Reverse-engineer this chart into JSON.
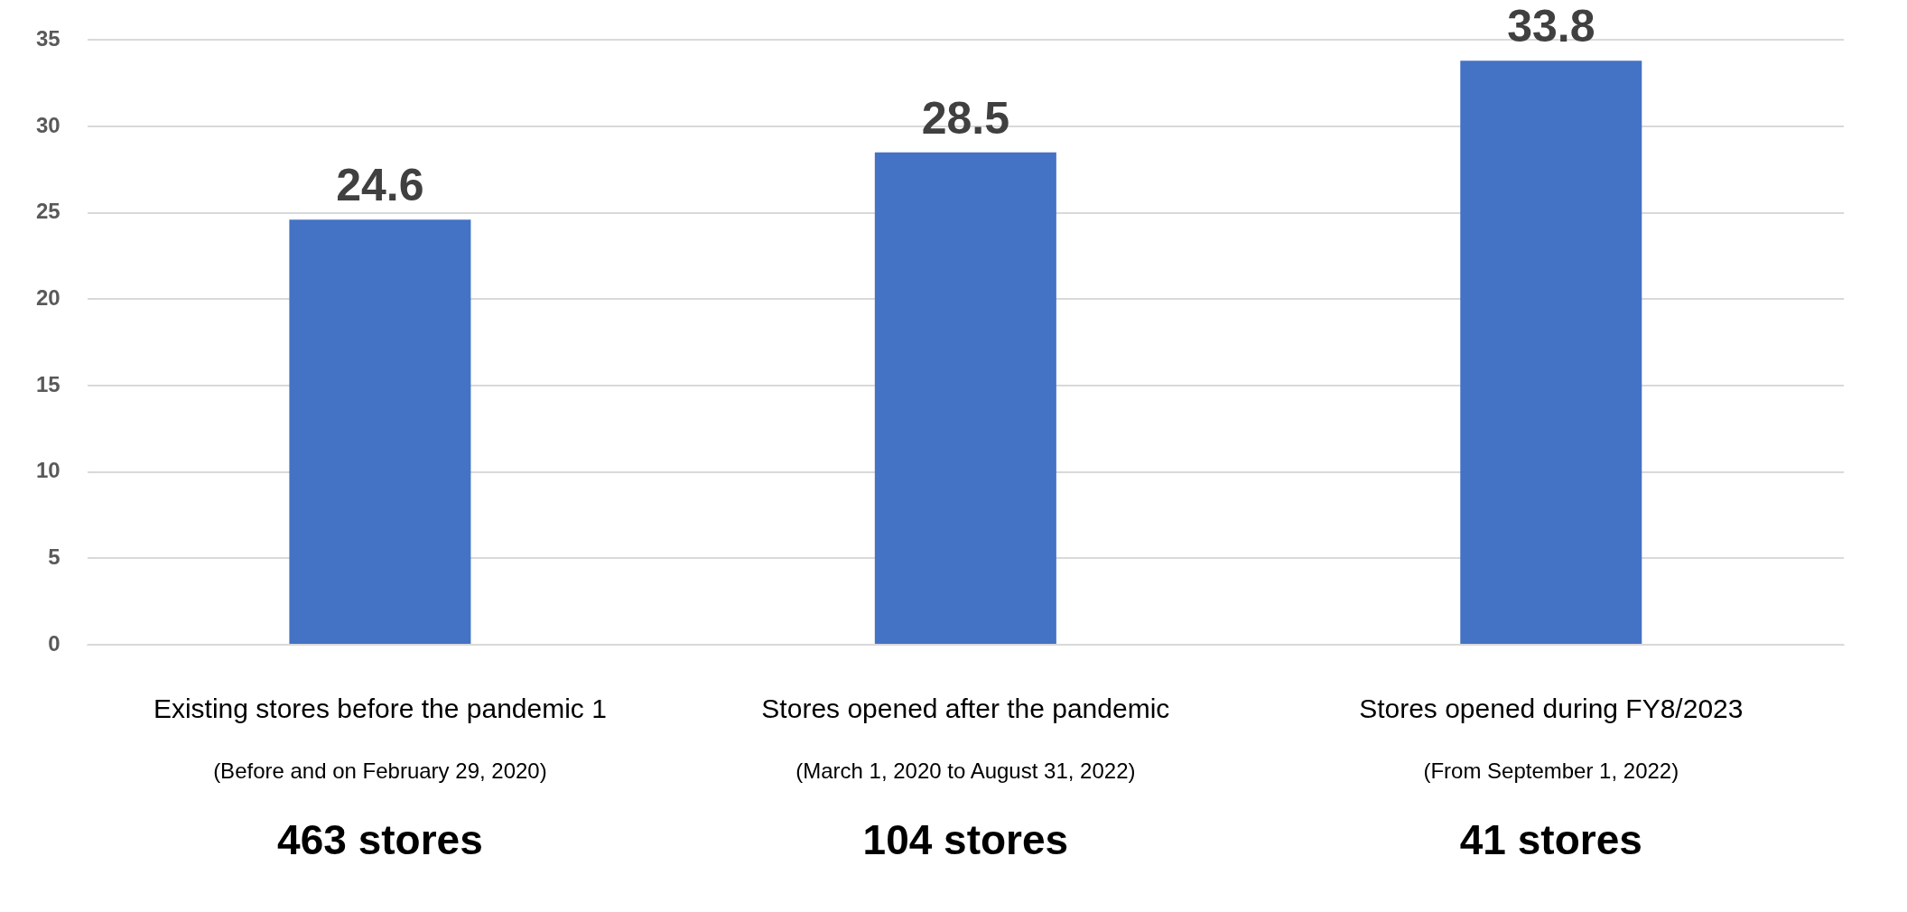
{
  "chart_data": {
    "type": "bar",
    "categories": [
      "Existing stores before the pandemic 1",
      "Stores opened after the pandemic",
      "Stores opened during FY8/2023"
    ],
    "values": [
      24.6,
      28.5,
      33.8
    ],
    "color": "#4472c4",
    "ylim": [
      0,
      35
    ],
    "yticks": [
      0,
      5,
      10,
      15,
      20,
      25,
      30,
      35
    ],
    "grid": "y",
    "data_labels": true,
    "legend": false,
    "annotations": [
      "(Before and on February 29, 2020)",
      "(March 1, 2020 to August 31, 2022)",
      "(From September 1, 2022)",
      "463 stores",
      "104 stores",
      "41 stores"
    ]
  }
}
